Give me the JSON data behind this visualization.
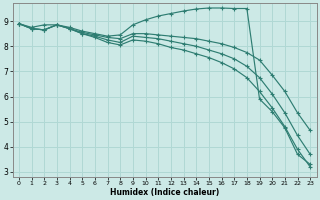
{
  "xlabel": "Humidex (Indice chaleur)",
  "xlim": [
    -0.5,
    23.5
  ],
  "ylim": [
    2.8,
    9.7
  ],
  "yticks": [
    3,
    4,
    5,
    6,
    7,
    8,
    9
  ],
  "xticks": [
    0,
    1,
    2,
    3,
    4,
    5,
    6,
    7,
    8,
    9,
    10,
    11,
    12,
    13,
    14,
    15,
    16,
    17,
    18,
    19,
    20,
    21,
    22,
    23
  ],
  "background_color": "#cce9e6",
  "grid_color": "#b0d8d4",
  "line_color": "#2e7d72",
  "series": [
    {
      "x": [
        0,
        1,
        2,
        3,
        4,
        5,
        6,
        7,
        8,
        9,
        10,
        11,
        12,
        13,
        14,
        15,
        16,
        17,
        18,
        19,
        20,
        21,
        22,
        23
      ],
      "y": [
        8.9,
        8.75,
        8.85,
        8.85,
        8.75,
        8.6,
        8.5,
        8.4,
        8.45,
        8.85,
        9.05,
        9.2,
        9.3,
        9.4,
        9.48,
        9.52,
        9.52,
        9.5,
        9.5,
        5.9,
        5.4,
        4.75,
        3.7,
        3.3
      ]
    },
    {
      "x": [
        0,
        1,
        2,
        3,
        4,
        5,
        6,
        7,
        8,
        9,
        10,
        11,
        12,
        13,
        14,
        15,
        16,
        17,
        18,
        19,
        20,
        21,
        22,
        23
      ],
      "y": [
        8.9,
        8.7,
        8.65,
        8.85,
        8.7,
        8.55,
        8.45,
        8.35,
        8.3,
        8.5,
        8.5,
        8.45,
        8.4,
        8.35,
        8.3,
        8.2,
        8.1,
        7.95,
        7.75,
        7.45,
        6.85,
        6.2,
        5.35,
        4.65
      ]
    },
    {
      "x": [
        0,
        1,
        2,
        3,
        4,
        5,
        6,
        7,
        8,
        9,
        10,
        11,
        12,
        13,
        14,
        15,
        16,
        17,
        18,
        19,
        20,
        21,
        22,
        23
      ],
      "y": [
        8.9,
        8.7,
        8.65,
        8.85,
        8.7,
        8.5,
        8.4,
        8.25,
        8.15,
        8.4,
        8.35,
        8.3,
        8.2,
        8.1,
        8.0,
        7.85,
        7.7,
        7.5,
        7.2,
        6.75,
        6.1,
        5.35,
        4.45,
        3.7
      ]
    },
    {
      "x": [
        0,
        1,
        2,
        3,
        4,
        5,
        6,
        7,
        8,
        9,
        10,
        11,
        12,
        13,
        14,
        15,
        16,
        17,
        18,
        19,
        20,
        21,
        22,
        23
      ],
      "y": [
        8.9,
        8.7,
        8.65,
        8.85,
        8.7,
        8.5,
        8.35,
        8.15,
        8.05,
        8.25,
        8.2,
        8.1,
        7.95,
        7.85,
        7.7,
        7.55,
        7.35,
        7.1,
        6.75,
        6.2,
        5.55,
        4.8,
        3.9,
        3.2
      ]
    }
  ]
}
